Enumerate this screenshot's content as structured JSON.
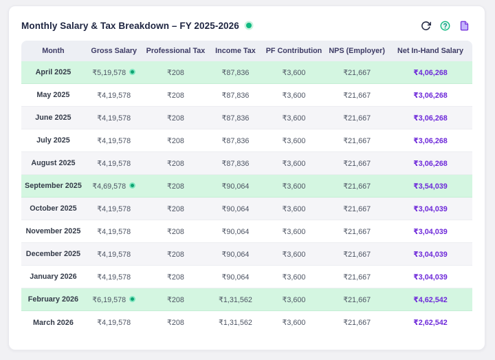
{
  "header": {
    "title": "Monthly Salary & Tax Breakdown – FY 2025-2026",
    "status_dot_color": "#10b981",
    "actions": [
      {
        "name": "refresh",
        "icon": "refresh-icon"
      },
      {
        "name": "help",
        "icon": "help-circle-icon"
      },
      {
        "name": "report",
        "icon": "document-icon"
      }
    ]
  },
  "table": {
    "columns": [
      {
        "key": "month",
        "label": "Month"
      },
      {
        "key": "gross-salary",
        "label": "Gross Salary"
      },
      {
        "key": "professional-tax",
        "label": "Professional Tax"
      },
      {
        "key": "income-tax",
        "label": "Income Tax"
      },
      {
        "key": "pf-contribution",
        "label": "PF Contribution"
      },
      {
        "key": "nps-employer",
        "label": "NPS (Employer)"
      },
      {
        "key": "net-in-hand-salary",
        "label": "Net In-Hand Salary"
      }
    ],
    "hike_indicator_icon": "trend-up-circle-icon",
    "rows": [
      {
        "month": "April 2025",
        "gross": "₹5,19,578",
        "hike": true,
        "professional_tax": "₹208",
        "income_tax": "₹87,836",
        "pf_contribution": "₹3,600",
        "nps_employer": "₹21,667",
        "net_in_hand": "₹4,06,268",
        "tone": "green"
      },
      {
        "month": "May 2025",
        "gross": "₹4,19,578",
        "hike": false,
        "professional_tax": "₹208",
        "income_tax": "₹87,836",
        "pf_contribution": "₹3,600",
        "nps_employer": "₹21,667",
        "net_in_hand": "₹3,06,268",
        "tone": "white"
      },
      {
        "month": "June 2025",
        "gross": "₹4,19,578",
        "hike": false,
        "professional_tax": "₹208",
        "income_tax": "₹87,836",
        "pf_contribution": "₹3,600",
        "nps_employer": "₹21,667",
        "net_in_hand": "₹3,06,268",
        "tone": "gray"
      },
      {
        "month": "July 2025",
        "gross": "₹4,19,578",
        "hike": false,
        "professional_tax": "₹208",
        "income_tax": "₹87,836",
        "pf_contribution": "₹3,600",
        "nps_employer": "₹21,667",
        "net_in_hand": "₹3,06,268",
        "tone": "white"
      },
      {
        "month": "August 2025",
        "gross": "₹4,19,578",
        "hike": false,
        "professional_tax": "₹208",
        "income_tax": "₹87,836",
        "pf_contribution": "₹3,600",
        "nps_employer": "₹21,667",
        "net_in_hand": "₹3,06,268",
        "tone": "gray"
      },
      {
        "month": "September 2025",
        "gross": "₹4,69,578",
        "hike": true,
        "professional_tax": "₹208",
        "income_tax": "₹90,064",
        "pf_contribution": "₹3,600",
        "nps_employer": "₹21,667",
        "net_in_hand": "₹3,54,039",
        "tone": "green"
      },
      {
        "month": "October 2025",
        "gross": "₹4,19,578",
        "hike": false,
        "professional_tax": "₹208",
        "income_tax": "₹90,064",
        "pf_contribution": "₹3,600",
        "nps_employer": "₹21,667",
        "net_in_hand": "₹3,04,039",
        "tone": "gray"
      },
      {
        "month": "November 2025",
        "gross": "₹4,19,578",
        "hike": false,
        "professional_tax": "₹208",
        "income_tax": "₹90,064",
        "pf_contribution": "₹3,600",
        "nps_employer": "₹21,667",
        "net_in_hand": "₹3,04,039",
        "tone": "white"
      },
      {
        "month": "December 2025",
        "gross": "₹4,19,578",
        "hike": false,
        "professional_tax": "₹208",
        "income_tax": "₹90,064",
        "pf_contribution": "₹3,600",
        "nps_employer": "₹21,667",
        "net_in_hand": "₹3,04,039",
        "tone": "gray"
      },
      {
        "month": "January 2026",
        "gross": "₹4,19,578",
        "hike": false,
        "professional_tax": "₹208",
        "income_tax": "₹90,064",
        "pf_contribution": "₹3,600",
        "nps_employer": "₹21,667",
        "net_in_hand": "₹3,04,039",
        "tone": "white"
      },
      {
        "month": "February 2026",
        "gross": "₹6,19,578",
        "hike": true,
        "professional_tax": "₹208",
        "income_tax": "₹1,31,562",
        "pf_contribution": "₹3,600",
        "nps_employer": "₹21,667",
        "net_in_hand": "₹4,62,542",
        "tone": "green"
      },
      {
        "month": "March 2026",
        "gross": "₹4,19,578",
        "hike": false,
        "professional_tax": "₹208",
        "income_tax": "₹1,31,562",
        "pf_contribution": "₹3,600",
        "nps_employer": "₹21,667",
        "net_in_hand": "₹2,62,542",
        "tone": "white"
      }
    ]
  },
  "colors": {
    "accent_purple": "#6d28d9",
    "highlight_green_row": "#d4f6e1",
    "status_green": "#10b981",
    "header_bg": "#edeff4",
    "header_text": "#3c3a64",
    "card_bg": "#ffffff",
    "page_bg": "#f1f1f4"
  }
}
